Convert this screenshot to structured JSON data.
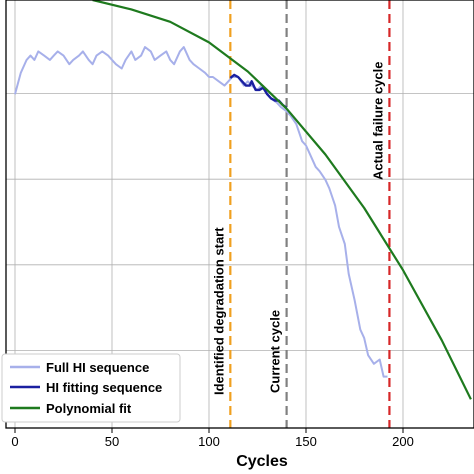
{
  "chart_data": {
    "type": "line",
    "xlabel": "Cycles",
    "ylabel": "",
    "xlim": [
      -3,
      235
    ],
    "ylim": [
      0,
      1
    ],
    "x_ticks": [
      0,
      50,
      100,
      150,
      200
    ],
    "x_tick_labels": [
      "0",
      "50",
      "100",
      "150",
      "200"
    ],
    "grid": true,
    "legend_position": "lower-left",
    "series": [
      {
        "name": "Full HI sequence",
        "color": "#a7b0ea",
        "x": [
          0,
          3,
          6,
          8,
          10,
          12,
          15,
          18,
          20,
          22,
          25,
          28,
          30,
          33,
          35,
          38,
          40,
          42,
          45,
          48,
          50,
          52,
          55,
          57,
          60,
          62,
          65,
          67,
          70,
          72,
          75,
          78,
          80,
          82,
          85,
          87,
          90,
          92,
          95,
          98,
          100,
          102,
          105,
          108,
          110,
          112,
          115,
          118,
          120,
          122,
          125,
          127,
          130,
          132,
          135,
          137,
          140,
          142,
          145,
          148,
          150,
          152,
          155,
          157,
          160,
          162,
          165,
          167,
          170,
          172,
          175,
          178,
          180,
          182,
          185,
          188,
          190,
          192
        ],
        "y": [
          0.78,
          0.83,
          0.86,
          0.87,
          0.86,
          0.88,
          0.87,
          0.86,
          0.87,
          0.88,
          0.87,
          0.85,
          0.86,
          0.87,
          0.88,
          0.86,
          0.85,
          0.87,
          0.88,
          0.87,
          0.86,
          0.85,
          0.84,
          0.86,
          0.88,
          0.86,
          0.87,
          0.89,
          0.88,
          0.86,
          0.87,
          0.88,
          0.86,
          0.85,
          0.88,
          0.89,
          0.86,
          0.85,
          0.84,
          0.83,
          0.82,
          0.82,
          0.81,
          0.8,
          0.81,
          0.82,
          0.82,
          0.8,
          0.81,
          0.8,
          0.79,
          0.8,
          0.78,
          0.77,
          0.76,
          0.75,
          0.74,
          0.73,
          0.71,
          0.67,
          0.66,
          0.64,
          0.61,
          0.6,
          0.58,
          0.56,
          0.52,
          0.47,
          0.43,
          0.36,
          0.3,
          0.23,
          0.21,
          0.17,
          0.15,
          0.16,
          0.12,
          0.12
        ]
      },
      {
        "name": "HI fitting sequence",
        "color": "#1a1fa0",
        "x": [
          111,
          113,
          115,
          117,
          119,
          121,
          122,
          124,
          126,
          128,
          130,
          132,
          134,
          136,
          138,
          140
        ],
        "y": [
          0.818,
          0.825,
          0.82,
          0.81,
          0.8,
          0.8,
          0.81,
          0.79,
          0.79,
          0.795,
          0.78,
          0.77,
          0.765,
          0.765,
          0.755,
          0.748
        ]
      },
      {
        "name": "Polynomial fit",
        "color": "#1e7a1e",
        "x": [
          40,
          60,
          80,
          100,
          120,
          140,
          160,
          180,
          200,
          220,
          235
        ],
        "y": [
          1.0,
          0.978,
          0.949,
          0.901,
          0.833,
          0.746,
          0.639,
          0.514,
          0.369,
          0.205,
          0.067
        ]
      }
    ],
    "vlines": [
      {
        "x": 111,
        "color": "#f0a020",
        "label": "Identified degradation start"
      },
      {
        "x": 140,
        "color": "#808080",
        "label": "Current cycle"
      },
      {
        "x": 193,
        "color": "#d62728",
        "label": "Actual failure cycle"
      }
    ]
  }
}
